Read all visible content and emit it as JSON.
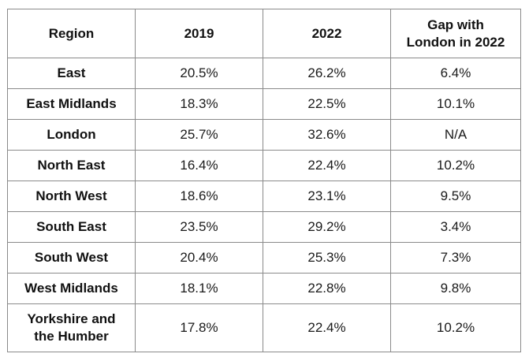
{
  "table": {
    "headers": {
      "region": "Region",
      "y2019": "2019",
      "y2022": "2022",
      "gap_line1": "Gap with",
      "gap_line2": "London in 2022"
    },
    "rows": [
      {
        "region": "East",
        "v2019": "20.5%",
        "v2022": "26.2%",
        "gap": "6.4%"
      },
      {
        "region": "East Midlands",
        "v2019": "18.3%",
        "v2022": "22.5%",
        "gap": "10.1%"
      },
      {
        "region": "London",
        "v2019": "25.7%",
        "v2022": "32.6%",
        "gap": "N/A"
      },
      {
        "region": "North East",
        "v2019": "16.4%",
        "v2022": "22.4%",
        "gap": "10.2%"
      },
      {
        "region": "North West",
        "v2019": "18.6%",
        "v2022": "23.1%",
        "gap": "9.5%"
      },
      {
        "region": "South East",
        "v2019": "23.5%",
        "v2022": "29.2%",
        "gap": "3.4%"
      },
      {
        "region": "South West",
        "v2019": "20.4%",
        "v2022": "25.3%",
        "gap": "7.3%"
      },
      {
        "region": "West Midlands",
        "v2019": "18.1%",
        "v2022": "22.8%",
        "gap": "9.8%"
      },
      {
        "region_line1": "Yorkshire and",
        "region_line2": "the Humber",
        "v2019": "17.8%",
        "v2022": "22.4%",
        "gap": "10.2%"
      }
    ]
  }
}
